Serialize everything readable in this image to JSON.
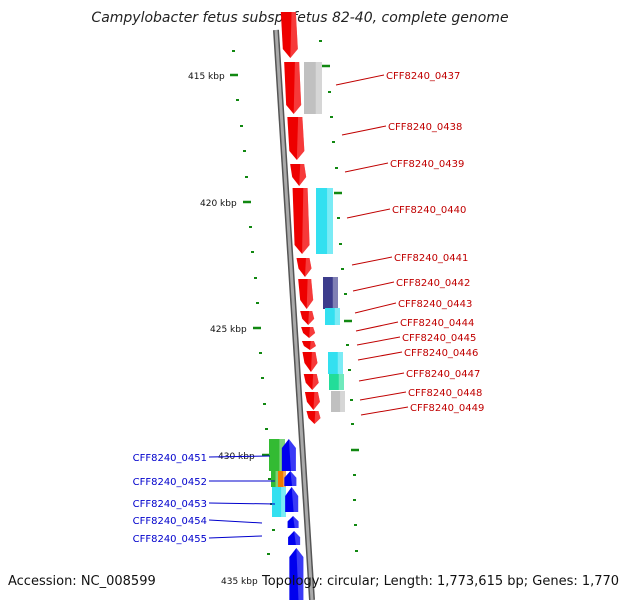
{
  "title": "Campylobacter fetus subsp. fetus 82-40, complete genome",
  "footer": {
    "accession": "Accession: NC_008599",
    "summary": "Topology: circular; Length: 1,773,615 bp; Genes: 1,770"
  },
  "ticks": [
    "415 kbp",
    "420 kbp",
    "425 kbp",
    "430 kbp",
    "435 kbp"
  ],
  "genes_red": [
    "CFF8240_0437",
    "CFF8240_0438",
    "CFF8240_0439",
    "CFF8240_0440",
    "CFF8240_0441",
    "CFF8240_0442",
    "CFF8240_0443",
    "CFF8240_0444",
    "CFF8240_0445",
    "CFF8240_0446",
    "CFF8240_0447",
    "CFF8240_0448",
    "CFF8240_0449"
  ],
  "genes_blue": [
    "CFF8240_0451",
    "CFF8240_0452",
    "CFF8240_0453",
    "CFF8240_0454",
    "CFF8240_0455"
  ],
  "colors": {
    "forward": "#ee0000",
    "reverse": "#0000ee",
    "backbone": "#808080",
    "tick": "#118811",
    "cog_cyan": "#33e0f0",
    "cog_gray": "#c0c0c0",
    "cog_navy": "#3c3c8c",
    "cog_green": "#33bb33",
    "cog_orange": "#f07c00",
    "cog_teal": "#22dd99"
  }
}
